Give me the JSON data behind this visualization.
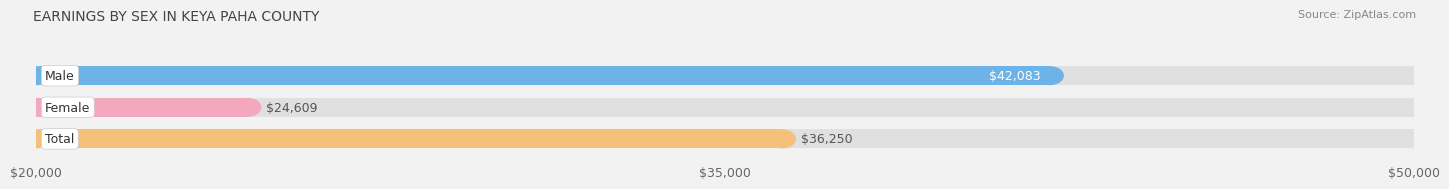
{
  "title": "EARNINGS BY SEX IN KEYA PAHA COUNTY",
  "source": "Source: ZipAtlas.com",
  "categories": [
    "Male",
    "Female",
    "Total"
  ],
  "values": [
    42083,
    24609,
    36250
  ],
  "bar_colors": [
    "#6db3e8",
    "#f4a8c0",
    "#f5c07a"
  ],
  "label_inside": [
    true,
    false,
    false
  ],
  "xmin": 20000,
  "xmax": 50000,
  "xticks": [
    20000,
    35000,
    50000
  ],
  "xtick_labels": [
    "$20,000",
    "$35,000",
    "$50,000"
  ],
  "value_labels": [
    "$42,083",
    "$24,609",
    "$36,250"
  ],
  "bar_height": 0.6,
  "bg_color": "#f2f2f2",
  "bar_bg_color": "#e0e0e0",
  "title_fontsize": 10,
  "source_fontsize": 8,
  "tick_fontsize": 9,
  "bar_label_fontsize": 9,
  "category_fontsize": 9
}
